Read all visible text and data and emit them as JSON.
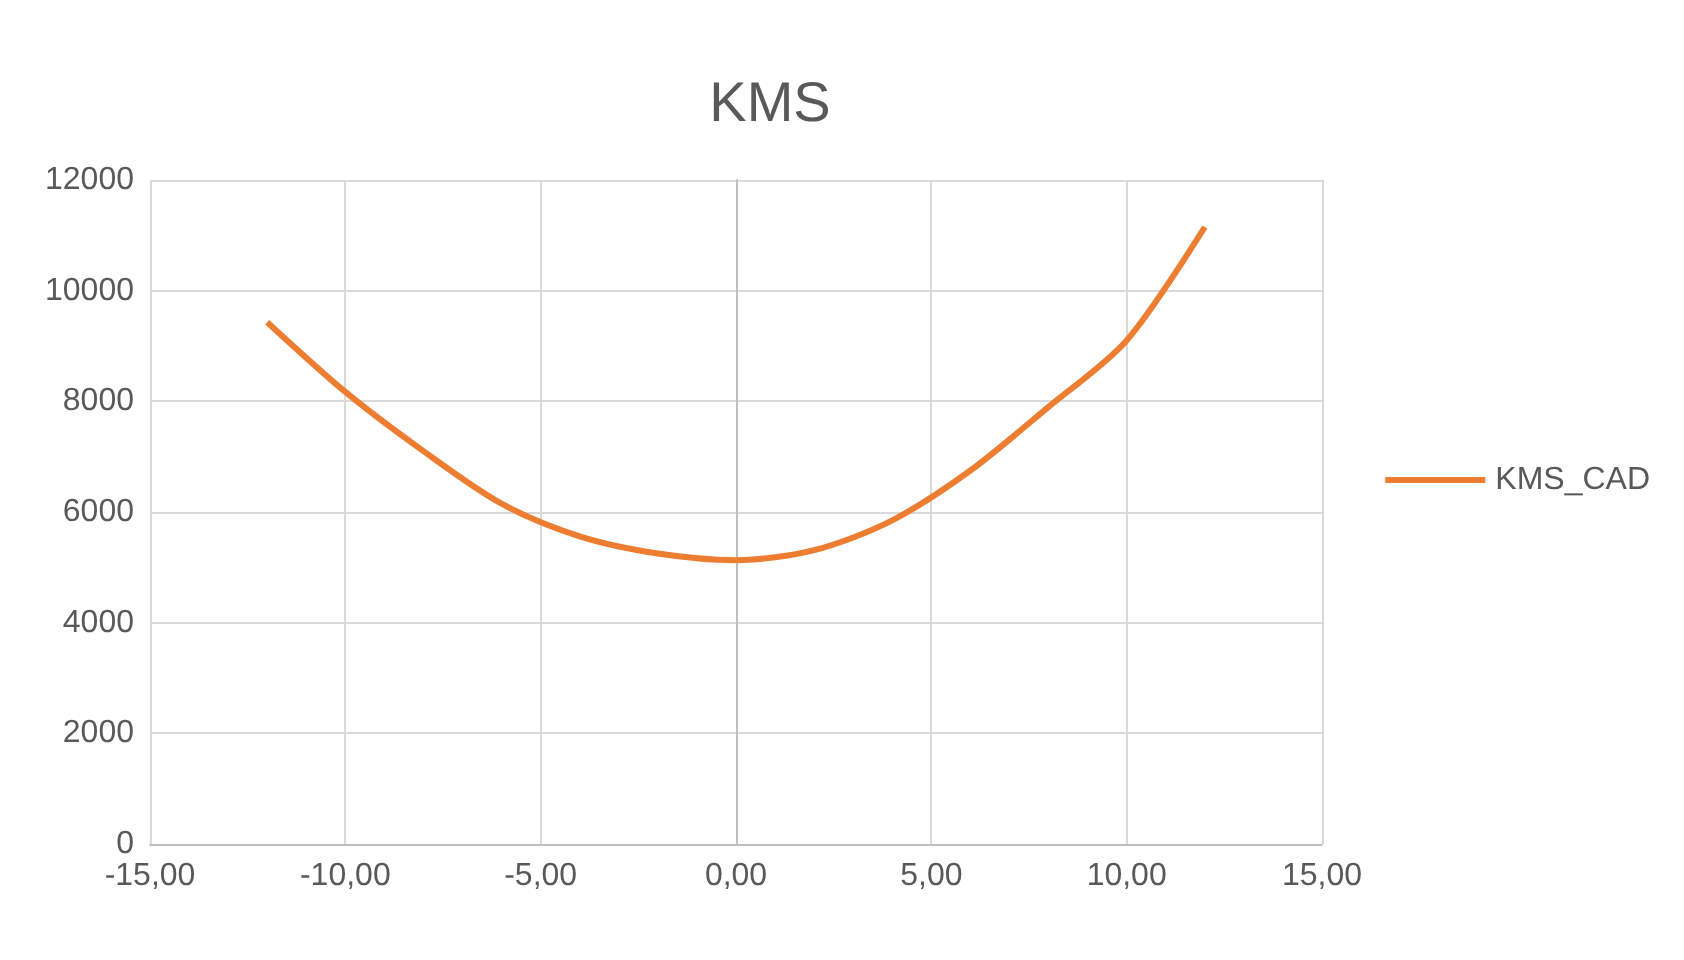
{
  "chart_data": {
    "type": "line",
    "title": "KMS",
    "xlim": [
      -15,
      15
    ],
    "xticks": [
      {
        "value": -15,
        "label": "-15,00"
      },
      {
        "value": -10,
        "label": "-10,00"
      },
      {
        "value": -5,
        "label": "-5,00"
      },
      {
        "value": 0,
        "label": "0,00"
      },
      {
        "value": 5,
        "label": "5,00"
      },
      {
        "value": 10,
        "label": "10,00"
      },
      {
        "value": 15,
        "label": "15,00"
      }
    ],
    "ylim": [
      0,
      12000
    ],
    "yticks": [
      0,
      2000,
      4000,
      6000,
      8000,
      10000,
      12000
    ],
    "grid": true,
    "legend": "right",
    "marker": "none",
    "line_style": "solid",
    "series": [
      {
        "name": "KMS_CAD",
        "color": "#ed7d31",
        "x": [
          -12,
          -10,
          -8,
          -6,
          -4,
          -2,
          0,
          2,
          4,
          6,
          8,
          10,
          12
        ],
        "values": [
          9430,
          8170,
          7100,
          6150,
          5560,
          5250,
          5130,
          5310,
          5850,
          6750,
          7900,
          9100,
          11150
        ]
      }
    ]
  }
}
